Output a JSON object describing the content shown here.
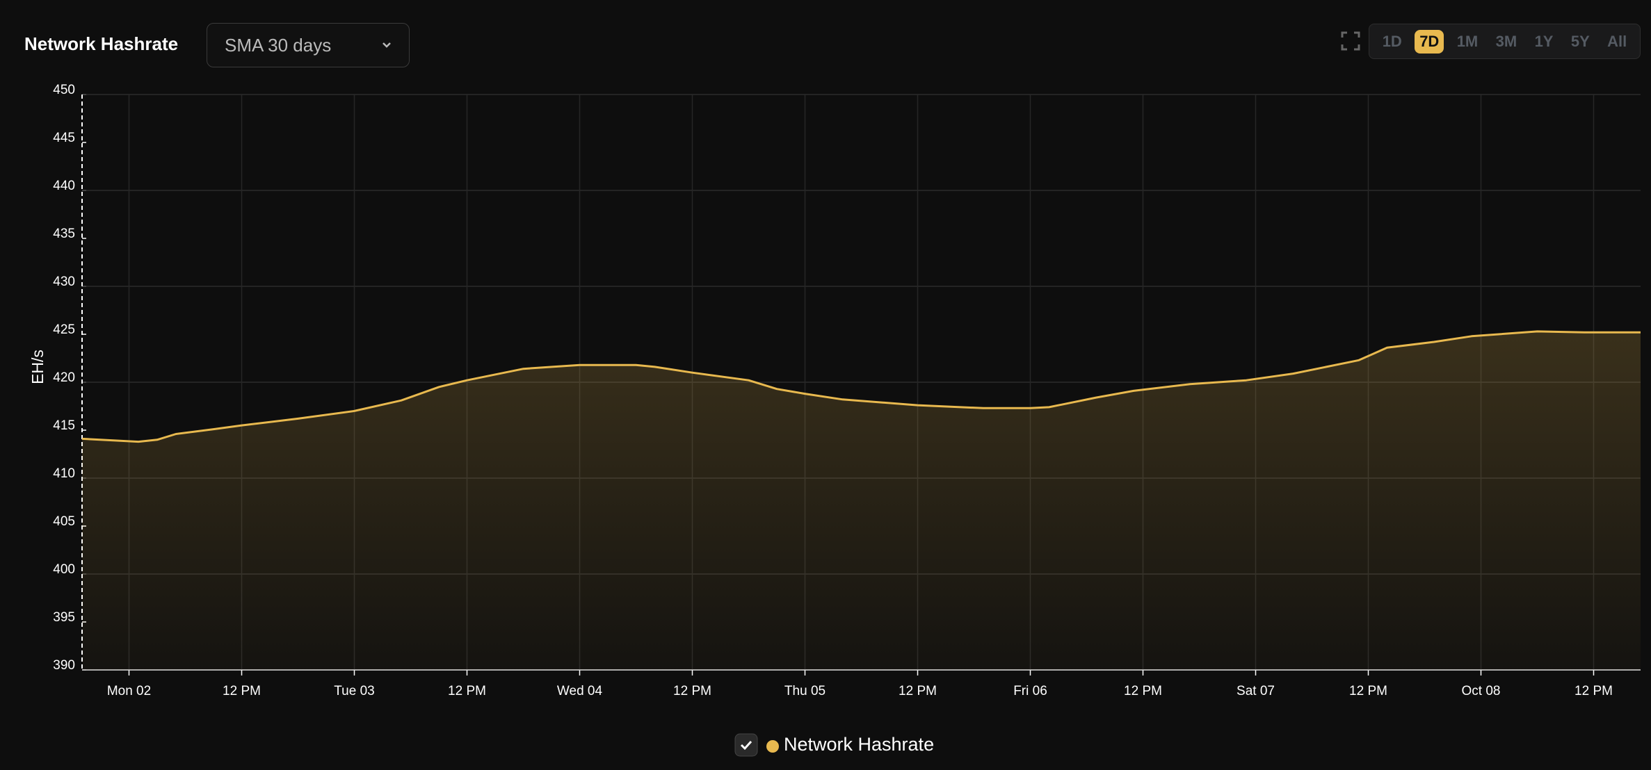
{
  "chart_data": {
    "type": "area",
    "title": "Network Hashrate",
    "ylabel": "EH/s",
    "x": [
      -5,
      1,
      3,
      5,
      9,
      12,
      18,
      24,
      29,
      33,
      36,
      42,
      48,
      54,
      56,
      60,
      66,
      69,
      72,
      76,
      84,
      91,
      96,
      98,
      103,
      107,
      113,
      119,
      124,
      131,
      134,
      139,
      143,
      150,
      155,
      161
    ],
    "series": [
      {
        "name": "Network Hashrate",
        "color": "#e8b94f",
        "values": [
          414.1,
          413.8,
          414.0,
          414.6,
          415.1,
          415.5,
          416.2,
          417.0,
          418.1,
          419.5,
          420.2,
          421.4,
          421.8,
          421.8,
          421.6,
          421.0,
          420.2,
          419.3,
          418.8,
          418.2,
          417.6,
          417.3,
          417.3,
          417.4,
          418.4,
          419.1,
          419.8,
          420.2,
          420.9,
          422.3,
          423.6,
          424.2,
          424.8,
          425.3,
          425.2,
          425.2
        ]
      }
    ],
    "xlim": [
      -5,
      161
    ],
    "xticks": [
      {
        "value": 0,
        "label": "Mon 02"
      },
      {
        "value": 12,
        "label": "12 PM"
      },
      {
        "value": 24,
        "label": "Tue 03"
      },
      {
        "value": 36,
        "label": "12 PM"
      },
      {
        "value": 48,
        "label": "Wed 04"
      },
      {
        "value": 60,
        "label": "12 PM"
      },
      {
        "value": 72,
        "label": "Thu 05"
      },
      {
        "value": 84,
        "label": "12 PM"
      },
      {
        "value": 96,
        "label": "Fri 06"
      },
      {
        "value": 108,
        "label": "12 PM"
      },
      {
        "value": 120,
        "label": "Sat 07"
      },
      {
        "value": 132,
        "label": "12 PM"
      },
      {
        "value": 144,
        "label": "Oct 08"
      },
      {
        "value": 156,
        "label": "12 PM"
      }
    ],
    "ylim": [
      390,
      450
    ],
    "yticks": [
      390,
      395,
      400,
      405,
      410,
      415,
      420,
      425,
      430,
      435,
      440,
      445,
      450
    ],
    "grid": true
  },
  "controls": {
    "dropdown": "SMA 30 days",
    "ranges": [
      "1D",
      "7D",
      "1M",
      "3M",
      "1Y",
      "5Y",
      "All"
    ],
    "active_range": 1
  }
}
